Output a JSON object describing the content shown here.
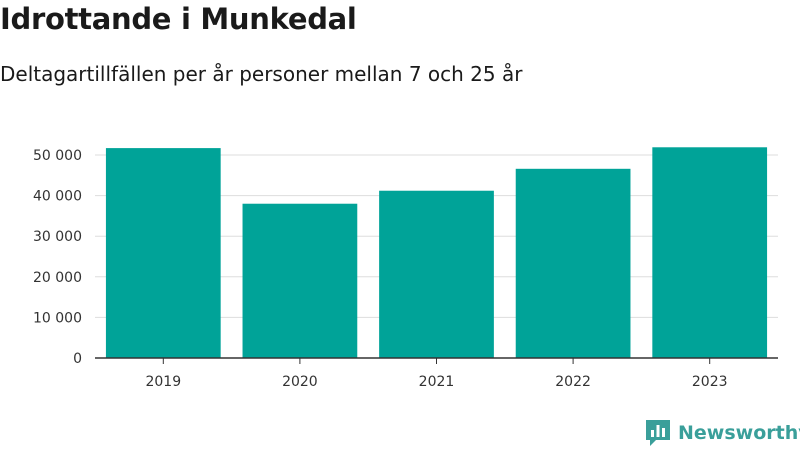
{
  "chart_data": {
    "type": "bar",
    "title": "Idrottande i Munkedal",
    "subtitle": "Deltagartillfällen per år personer mellan 7 och 25 år",
    "categories": [
      "2019",
      "2020",
      "2021",
      "2022",
      "2023"
    ],
    "values": [
      51700,
      38000,
      41200,
      46600,
      51900
    ],
    "ylim": [
      0,
      50000
    ],
    "yticks": [
      0,
      10000,
      20000,
      30000,
      40000,
      50000
    ],
    "ytick_labels": [
      "0",
      "10 000",
      "20 000",
      "30 000",
      "40 000",
      "50 000"
    ],
    "grid": true,
    "bar_color": "#00a398",
    "grid_color": "#dddddd",
    "axis_color": "#333333"
  },
  "branding": {
    "logo_text": "Newsworthy",
    "logo_icon": "newsworthy-logo-icon",
    "color": "#3a9f9a"
  }
}
